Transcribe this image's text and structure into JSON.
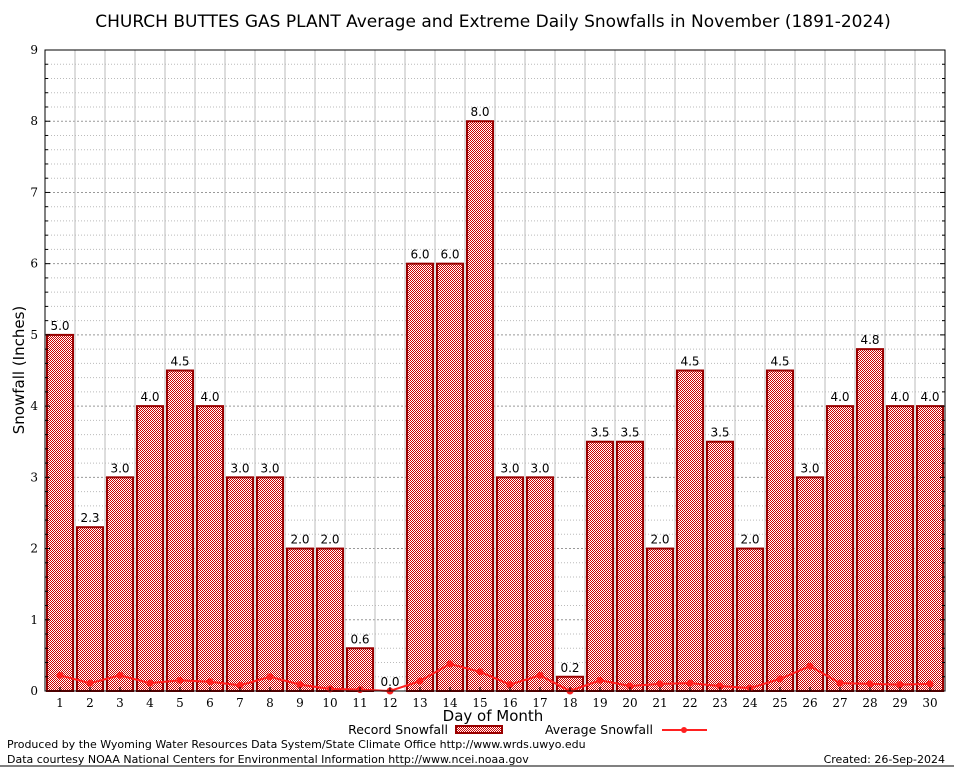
{
  "chart_data": {
    "type": "bar",
    "title": "CHURCH BUTTES GAS PLANT Average and Extreme Daily Snowfalls in November (1891-2024)",
    "xlabel": "Day of Month",
    "ylabel": "Snowfall (Inches)",
    "ylim": [
      0,
      9
    ],
    "yticks": [
      "0",
      "1",
      "2",
      "3",
      "4",
      "5",
      "6",
      "7",
      "8",
      "9"
    ],
    "grid": true,
    "legend_position": "bottom-center",
    "categories": [
      "1",
      "2",
      "3",
      "4",
      "5",
      "6",
      "7",
      "8",
      "9",
      "10",
      "11",
      "12",
      "13",
      "14",
      "15",
      "16",
      "17",
      "18",
      "19",
      "20",
      "21",
      "22",
      "23",
      "24",
      "25",
      "26",
      "27",
      "28",
      "29",
      "30"
    ],
    "series": [
      {
        "name": "Record Snowfall",
        "type": "bar",
        "color": "#cc0000",
        "values": [
          5.0,
          2.3,
          3.0,
          4.0,
          4.5,
          4.0,
          3.0,
          3.0,
          2.0,
          2.0,
          0.6,
          0.0,
          6.0,
          6.0,
          8.0,
          3.0,
          3.0,
          0.2,
          3.5,
          3.5,
          2.0,
          4.5,
          3.5,
          2.0,
          4.5,
          3.0,
          4.0,
          4.8,
          4.0,
          4.0
        ],
        "labels": [
          "5.0",
          "2.3",
          "3.0",
          "4.0",
          "4.5",
          "4.0",
          "3.0",
          "3.0",
          "2.0",
          "2.0",
          "0.6",
          "0.0",
          "6.0",
          "6.0",
          "8.0",
          "3.0",
          "3.0",
          "0.2",
          "3.5",
          "3.5",
          "2.0",
          "4.5",
          "3.5",
          "2.0",
          "4.5",
          "3.0",
          "4.0",
          "4.8",
          "4.0",
          "4.0"
        ]
      },
      {
        "name": "Average Snowfall",
        "type": "line",
        "color": "#ff2020",
        "values": [
          0.22,
          0.11,
          0.22,
          0.11,
          0.15,
          0.13,
          0.08,
          0.2,
          0.09,
          0.03,
          0.02,
          0.0,
          0.14,
          0.38,
          0.27,
          0.09,
          0.22,
          0.0,
          0.15,
          0.07,
          0.1,
          0.11,
          0.07,
          0.04,
          0.17,
          0.35,
          0.11,
          0.1,
          0.09,
          0.1
        ]
      }
    ]
  },
  "footer": {
    "line1": "Produced by the Wyoming Water Resources Data System/State Climate Office http://www.wrds.uwyo.edu",
    "line2": "Data courtesy NOAA National Centers for Environmental Information http://www.ncei.noaa.gov",
    "created": "Created: 26-Sep-2024"
  }
}
